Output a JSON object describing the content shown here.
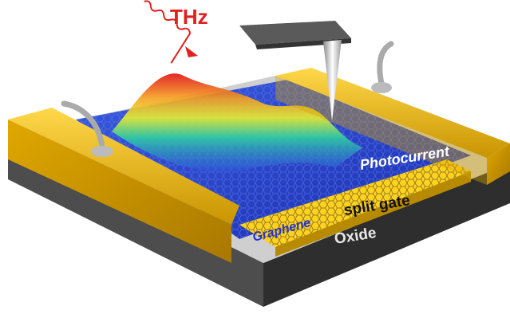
{
  "labels": {
    "thz": "THz",
    "photocurrent": "Photocurrent",
    "split_gate": "split gate",
    "graphene": "Graphene",
    "oxide": "Oxide"
  }
}
